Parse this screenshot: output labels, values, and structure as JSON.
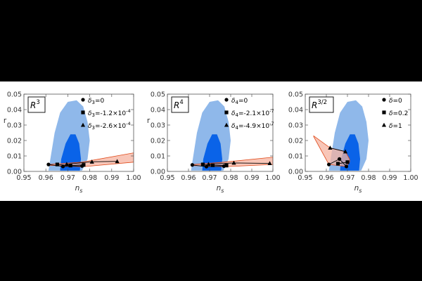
{
  "chart_data": [
    {
      "type": "scatter",
      "title": "R^3",
      "title_base": "R",
      "title_sup": "3",
      "xlabel": "n",
      "xlabel_sub": "s",
      "ylabel": "r",
      "xlim": [
        0.95,
        1.0
      ],
      "ylim": [
        0.0,
        0.05
      ],
      "xticks": [
        "0.95",
        "0.96",
        "0.97",
        "0.98",
        "0.99",
        "1.00"
      ],
      "yticks": [
        "0.00",
        "0.01",
        "0.02",
        "0.03",
        "0.04",
        "0.05"
      ],
      "legend": [
        {
          "marker": "circle",
          "sym": "δ",
          "sub": "3",
          "rest": "=0"
        },
        {
          "marker": "square",
          "sym": "δ",
          "sub": "3",
          "rest": "=-1.2×10",
          "sup": "-4"
        },
        {
          "marker": "triangle",
          "sym": "δ",
          "sub": "3",
          "rest": "=-2.6×10",
          "sup": "-4"
        }
      ],
      "series": [
        {
          "marker": "circle",
          "points": [
            [
              0.9612,
              0.0045
            ],
            [
              0.9678,
              0.0032
            ],
            [
              0.9765,
              0.0035
            ]
          ]
        },
        {
          "marker": "square",
          "points": [
            [
              0.9652,
              0.0045
            ],
            [
              0.9712,
              0.0038
            ],
            [
              0.9772,
              0.0042
            ]
          ]
        },
        {
          "marker": "triangle",
          "points": [
            [
              0.9695,
              0.0047
            ],
            [
              0.981,
              0.0062
            ],
            [
              0.9925,
              0.0065
            ]
          ]
        }
      ],
      "band": {
        "upper": [
          [
            0.9612,
            0.0045
          ],
          [
            0.9765,
            0.006
          ],
          [
            1.0,
            0.012
          ]
        ],
        "lower": [
          [
            0.9612,
            0.004
          ],
          [
            0.9765,
            0.003
          ],
          [
            1.0,
            0.006
          ]
        ]
      }
    },
    {
      "type": "scatter",
      "title": "R^4",
      "title_base": "R",
      "title_sup": "4",
      "xlabel": "n",
      "xlabel_sub": "s",
      "ylabel": "r",
      "xlim": [
        0.95,
        1.0
      ],
      "ylim": [
        0.0,
        0.05
      ],
      "xticks": [
        "0.95",
        "0.96",
        "0.97",
        "0.98",
        "0.99",
        "1.00"
      ],
      "yticks": [
        "0.00",
        "0.01",
        "0.02",
        "0.03",
        "0.04",
        "0.05"
      ],
      "legend": [
        {
          "marker": "circle",
          "sym": "δ",
          "sub": "4",
          "rest": "=0"
        },
        {
          "marker": "square",
          "sym": "δ",
          "sub": "4",
          "rest": "=-2.1×10",
          "sup": "-7"
        },
        {
          "marker": "triangle",
          "sym": "δ",
          "sub": "4",
          "rest": "=-4.9×10",
          "sup": "-7"
        }
      ],
      "series": [
        {
          "marker": "circle",
          "points": [
            [
              0.9618,
              0.0042
            ],
            [
              0.9685,
              0.0031
            ],
            [
              0.9768,
              0.0034
            ]
          ]
        },
        {
          "marker": "square",
          "points": [
            [
              0.9668,
              0.0045
            ],
            [
              0.9715,
              0.004
            ],
            [
              0.978,
              0.0038
            ]
          ]
        },
        {
          "marker": "triangle",
          "points": [
            [
              0.9695,
              0.0047
            ],
            [
              0.9815,
              0.0055
            ],
            [
              0.9985,
              0.0052
            ]
          ]
        }
      ],
      "band": {
        "upper": [
          [
            0.9618,
            0.0044
          ],
          [
            0.9768,
            0.006
          ],
          [
            1.0,
            0.0092
          ]
        ],
        "lower": [
          [
            0.9618,
            0.0038
          ],
          [
            0.9768,
            0.003
          ],
          [
            1.0,
            0.0045
          ]
        ]
      }
    },
    {
      "type": "scatter",
      "title": "R^3/2",
      "title_base": "R",
      "title_sup": "3/2",
      "xlabel": "n",
      "xlabel_sub": "s",
      "ylabel": "",
      "xlim": [
        0.95,
        1.0
      ],
      "ylim": [
        0.0,
        0.05
      ],
      "xticks": [
        "0.95",
        "0.96",
        "0.97",
        "0.98",
        "0.99",
        "1.00"
      ],
      "yticks": [
        "0.00",
        "0.01",
        "0.02",
        "0.03",
        "0.04",
        "0.05"
      ],
      "legend": [
        {
          "marker": "circle",
          "sym": "δ",
          "sub": "",
          "rest": "=0"
        },
        {
          "marker": "square",
          "sym": "δ",
          "sub": "",
          "rest": "=0.2"
        },
        {
          "marker": "triangle",
          "sym": "δ",
          "sub": "",
          "rest": "=1"
        }
      ],
      "series": [
        {
          "marker": "circle",
          "points": [
            [
              0.9612,
              0.0045
            ],
            [
              0.9662,
              0.008
            ],
            [
              0.9695,
              0.0032
            ]
          ]
        },
        {
          "marker": "square",
          "points": [
            [
              0.9655,
              0.005
            ],
            [
              0.97,
              0.006
            ]
          ]
        },
        {
          "marker": "triangle",
          "points": [
            [
              0.9618,
              0.0152
            ],
            [
              0.969,
              0.0128
            ]
          ]
        }
      ],
      "band": {
        "upper": [
          [
            0.954,
            0.023
          ],
          [
            0.9618,
            0.0152
          ],
          [
            0.969,
            0.0128
          ],
          [
            0.971,
            0.008
          ]
        ],
        "lower": [
          [
            0.954,
            0.0225
          ],
          [
            0.9612,
            0.0045
          ],
          [
            0.9695,
            0.0032
          ],
          [
            0.971,
            0.006
          ]
        ]
      }
    }
  ],
  "colors": {
    "outer": "#8fb8ea",
    "inner": "#0a63e8",
    "band": "#f5b3a0",
    "band_edge": "#e04a1a",
    "marker": "#000000"
  }
}
